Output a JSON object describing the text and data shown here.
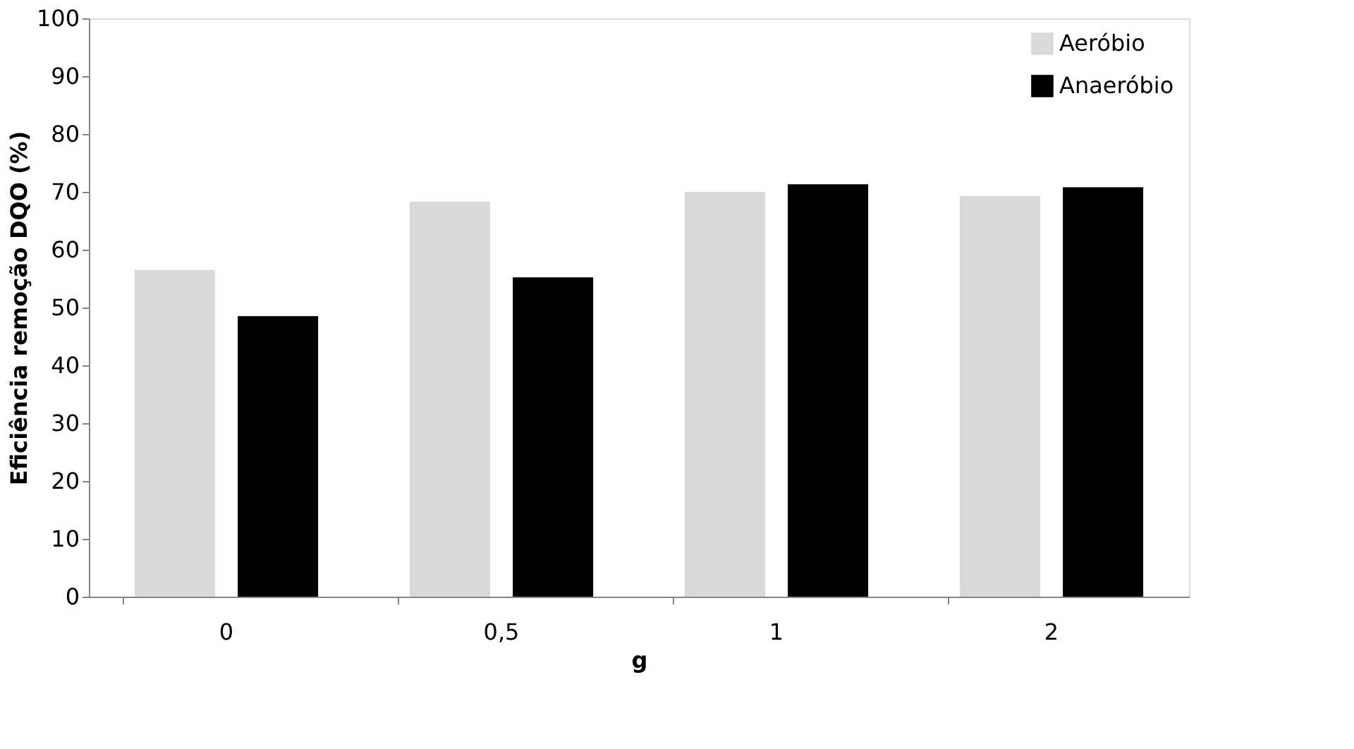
{
  "chart_data": {
    "type": "bar",
    "xlabel": "g",
    "ylabel": "Eficiência remoção DQO (%)",
    "categories": [
      "0",
      "0,5",
      "1",
      "2"
    ],
    "series": [
      {
        "name": "Aeróbio",
        "color": "#d9d9d9",
        "values": [
          56.5,
          68.3,
          70.0,
          69.3
        ]
      },
      {
        "name": "Anaeróbio",
        "color": "#000000",
        "values": [
          48.5,
          55.2,
          71.3,
          70.8
        ]
      }
    ],
    "ylim": [
      0,
      100
    ],
    "yticks": [
      0,
      10,
      20,
      30,
      40,
      50,
      60,
      70,
      80,
      90,
      100
    ],
    "grid": false,
    "legend": "top right"
  }
}
